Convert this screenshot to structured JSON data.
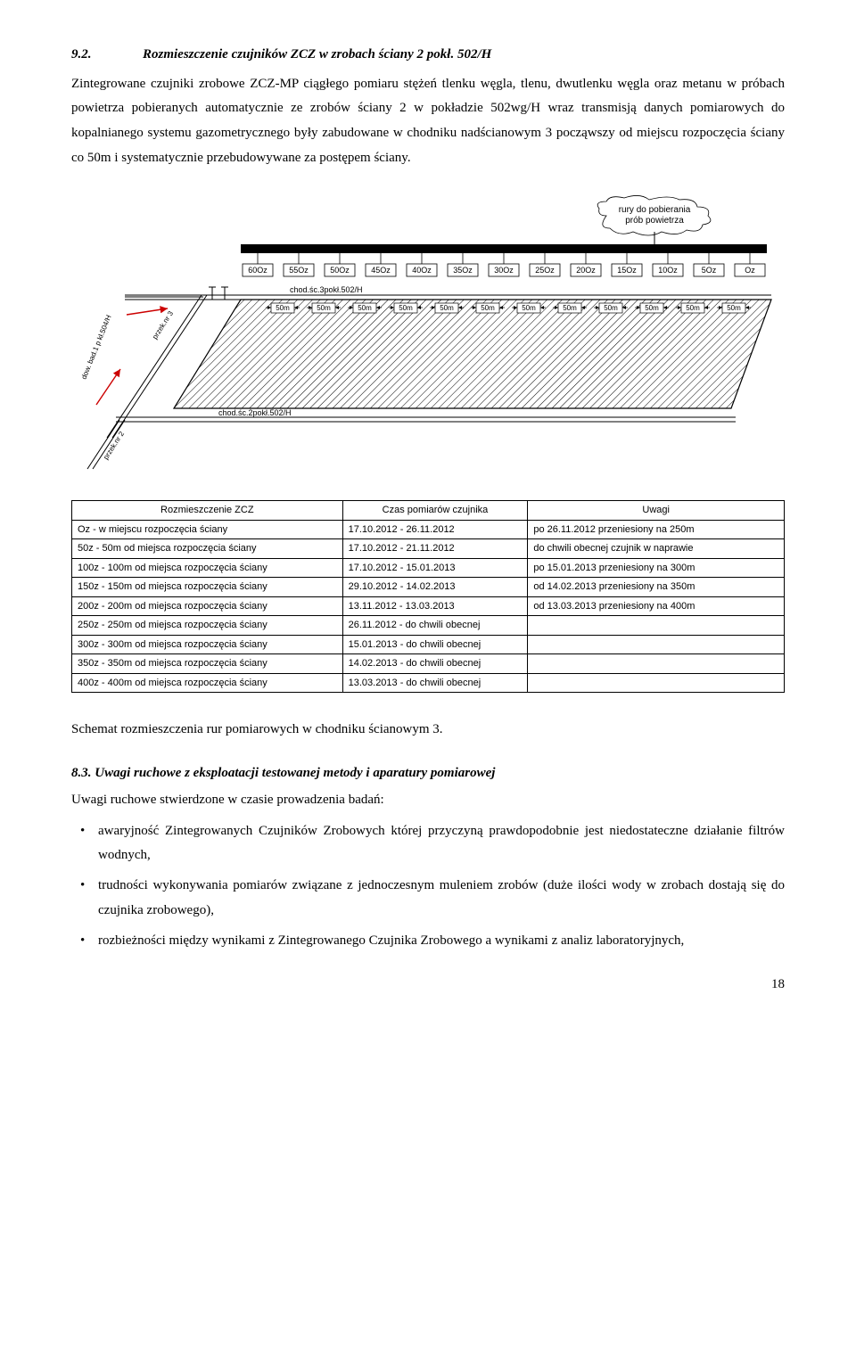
{
  "head": {
    "num": "9.2.",
    "title": "Rozmieszczenie czujników ZCZ w zrobach ściany 2 pokł. 502/H"
  },
  "para1": "Zintegrowane czujniki zrobowe   ZCZ-MP ciągłego pomiaru stężeń tlenku węgla, tlenu, dwutlenku węgla oraz metanu w próbach powietrza pobieranych automatycznie  ze zrobów ściany 2 w pokładzie 502wg/H wraz transmisją danych pomiarowych do kopalnianego systemu gazometrycznego były zabudowane w chodniku nadścianowym 3 począwszy od miejscu rozpoczęcia ściany co 50m i systematycznie przebudowywane za postępem ściany.",
  "diagram": {
    "pipeLabel1": "rury do pobierania",
    "pipeLabel2": "prób powietrza",
    "ozLabels": [
      "60Oz",
      "55Oz",
      "50Oz",
      "45Oz",
      "40Oz",
      "35Oz",
      "30Oz",
      "25Oz",
      "20Oz",
      "15Oz",
      "10Oz",
      "5Oz",
      "Oz"
    ],
    "m50": "50m",
    "chodTop": "chod.śc.3pokł.502/H",
    "chodBot": "chod.śc.2pokł.502/H",
    "przek3": "przek.nr 3",
    "przek2": "przek.nr 2",
    "dow": "dow. bad.1 p kł.504/H"
  },
  "table": {
    "headers": [
      "Rozmieszczenie ZCZ",
      "Czas pomiarów czujnika",
      "Uwagi"
    ],
    "rows": [
      [
        "Oz - w miejscu rozpoczęcia ściany",
        "17.10.2012 - 26.11.2012",
        "po 26.11.2012 przeniesiony na 250m"
      ],
      [
        "50z - 50m od miejsca rozpoczęcia ściany",
        "17.10.2012 - 21.11.2012",
        "do chwili obecnej czujnik w naprawie"
      ],
      [
        "100z - 100m od miejsca rozpoczęcia ściany",
        "17.10.2012 - 15.01.2013",
        "po 15.01.2013 przeniesiony na 300m"
      ],
      [
        "150z - 150m od miejsca rozpoczęcia ściany",
        "29.10.2012 - 14.02.2013",
        "od 14.02.2013 przeniesiony na 350m"
      ],
      [
        "200z - 200m od miejsca rozpoczęcia ściany",
        "13.11.2012 - 13.03.2013",
        "od 13.03.2013 przeniesiony na 400m"
      ],
      [
        "250z - 250m od miejsca rozpoczęcia ściany",
        "26.11.2012 - do chwili obecnej",
        ""
      ],
      [
        "300z - 300m od miejsca rozpoczęcia ściany",
        "15.01.2013 - do chwili obecnej",
        ""
      ],
      [
        "350z - 350m od miejsca rozpoczęcia ściany",
        "14.02.2013 - do chwili obecnej",
        ""
      ],
      [
        "400z - 400m od miejsca rozpoczęcia ściany",
        "13.03.2013 - do chwili obecnej",
        ""
      ]
    ]
  },
  "caption": "Schemat rozmieszczenia rur pomiarowych w chodniku ścianowym 3.",
  "sub": {
    "num": "8.3.",
    "title": "Uwagi ruchowe z eksploatacji testowanej metody i aparatury pomiarowej"
  },
  "intro": "Uwagi ruchowe stwierdzone w czasie prowadzenia badań:",
  "bullets": [
    "awaryjność Zintegrowanych Czujników Zrobowych której przyczyną prawdopodobnie jest niedostateczne działanie filtrów wodnych,",
    "trudności wykonywania pomiarów związane z jednoczesnym muleniem zrobów (duże ilości wody w zrobach dostają się do czujnika zrobowego),",
    "rozbieżności między wynikami z Zintegrowanego Czujnika Zrobowego a wynikami z analiz laboratoryjnych,"
  ],
  "pagenum": "18",
  "colors": {
    "text": "#000000",
    "line": "#000000",
    "red": "#cc0000",
    "hatch": "#000000"
  }
}
